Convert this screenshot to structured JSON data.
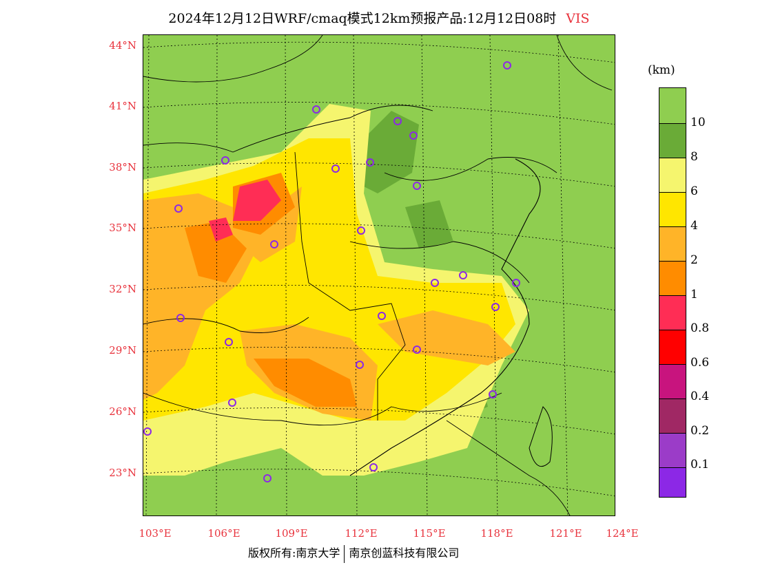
{
  "title": {
    "text": "2024年12月12日WRF/cmaq模式12km预报产品:12月12日08时",
    "variable": "VIS"
  },
  "legend": {
    "unit": "(km)",
    "labels": [
      "10",
      "8",
      "6",
      "4",
      "2",
      "1",
      "0.8",
      "0.6",
      "0.4",
      "0.2",
      "0.1"
    ],
    "colors": [
      "#8fce50",
      "#6aab37",
      "#f5f56e",
      "#ffe600",
      "#ffb428",
      "#ff8c00",
      "#ff2d55",
      "#ff0000",
      "#c8147e",
      "#a02864",
      "#9b3cc8",
      "#8c28e6"
    ]
  },
  "lat_labels": [
    "44°N",
    "41°N",
    "38°N",
    "35°N",
    "32°N",
    "29°N",
    "26°N",
    "23°N"
  ],
  "lon_labels": [
    "103°E",
    "106°E",
    "109°E",
    "112°E",
    "115°E",
    "118°E",
    "121°E",
    "124°E"
  ],
  "credit": {
    "left": "版权所有:南京大学",
    "right": "南京创蓝科技有限公司"
  },
  "map_colors": {
    "ocean": "#8fce50",
    "land_green": "#8fce50",
    "dark_green": "#6aab37",
    "light_yellow": "#f5f56e",
    "yellow": "#ffe600",
    "light_orange": "#ffb428",
    "orange": "#ff8c00",
    "pink": "#ff2d55",
    "red": "#ff0000",
    "station": "#8c28e6"
  }
}
